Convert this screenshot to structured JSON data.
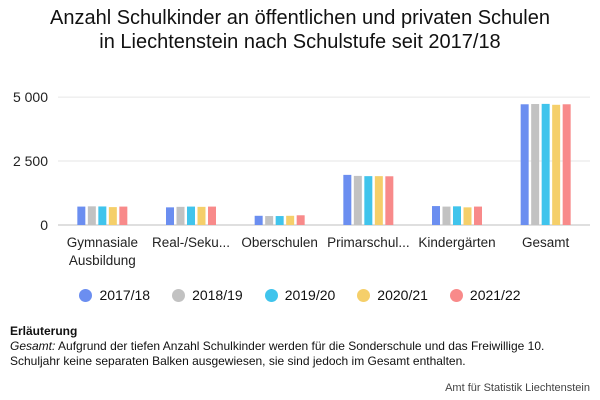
{
  "chart_data": {
    "type": "bar",
    "title": "Anzahl Schulkinder an öffentlichen und privaten Schulen in Liechtenstein nach Schulstufe seit 2017/18",
    "categories": [
      [
        "Gymnasiale",
        "Ausbildung"
      ],
      [
        "Real-/Seku..."
      ],
      [
        "Oberschulen"
      ],
      [
        "Primarschul..."
      ],
      [
        "Kindergärten"
      ],
      [
        "Gesamt"
      ]
    ],
    "series": [
      {
        "name": "2017/18",
        "color": "#6b8ef0",
        "values": [
          720,
          690,
          360,
          1960,
          740,
          4720
        ]
      },
      {
        "name": "2018/19",
        "color": "#c2c2c2",
        "values": [
          730,
          710,
          350,
          1920,
          720,
          4730
        ]
      },
      {
        "name": "2019/20",
        "color": "#40c4ec",
        "values": [
          725,
          720,
          350,
          1910,
          730,
          4735
        ]
      },
      {
        "name": "2020/21",
        "color": "#f5cf6a",
        "values": [
          700,
          710,
          360,
          1910,
          690,
          4700
        ]
      },
      {
        "name": "2021/22",
        "color": "#f88a8a",
        "values": [
          720,
          720,
          380,
          1905,
          720,
          4720
        ]
      }
    ],
    "y_ticks": [
      0,
      2500,
      5000
    ],
    "y_tick_labels": [
      "0",
      "2 500",
      "5 000"
    ],
    "ylim": [
      0,
      5200
    ],
    "grid": true,
    "legend_position": "bottom"
  },
  "note": {
    "title": "Erläuterung",
    "label": "Gesamt:",
    "text": " Aufgrund der tiefen Anzahl Schulkinder werden für die Sonderschule und das Freiwillige 10. Schuljahr keine separaten Balken ausgewiesen, sie sind jedoch im Gesamt enthalten."
  },
  "source": "Amt für Statistik Liechtenstein"
}
